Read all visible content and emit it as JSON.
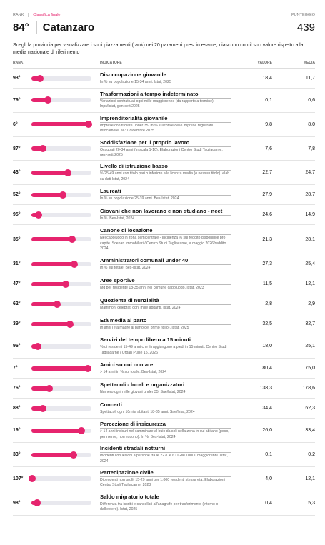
{
  "header": {
    "rank_label": "RANK",
    "section": "Classifica finale",
    "score_label": "PUNTEGGIO",
    "rank": "84°",
    "province": "Catanzaro",
    "score": "439"
  },
  "description": "Scegli la provincia per visualizzare i suoi piazzamenti (rank) nei 20 parametri presi in esame, ciascuno con il suo valore rispetto alla media nazionale di riferimento",
  "table": {
    "columns": [
      "RANK",
      "INDICATORE",
      "VALORE",
      "MEDIA"
    ],
    "bar_color": "#e6246e",
    "rows": [
      {
        "rank": {
          "value": 93,
          "label": "93°"
        },
        "title": "Disoccupazione giovanile",
        "note": "In % su popolazione 15-34 anni. Istat, 2025",
        "value": "18,4",
        "media": "11,7"
      },
      {
        "rank": {
          "value": 79,
          "label": "79°"
        },
        "title": "Trasformazioni a tempo indeterminato",
        "note": "Variazioni contrattuali ogni mille maggiorenne (da rapporto a termine). Inps/Istat, gen-sett 2025",
        "value": "0,1",
        "media": "0,6"
      },
      {
        "rank": {
          "value": 6,
          "label": "6°"
        },
        "title": "Imprenditorialità giovanile",
        "note": "Imprese con titolare under 35. In % sul totale delle imprese registrate. Infocamere, al 31 dicembre 2025",
        "value": "9,8",
        "media": "8,0"
      },
      {
        "rank": {
          "value": 87,
          "label": "87°"
        },
        "title": "Soddisfazione per il proprio lavoro",
        "note": "Occupati 20-34 anni (in scala 1-10). Elaborazioni Centro Studi Tagliacarne, gen-sett 2025",
        "value": "7,6",
        "media": "7,8"
      },
      {
        "rank": {
          "value": 43,
          "label": "43°"
        },
        "title": "Livello di istruzione basso",
        "note": "% 25-49 anni con titolo pari o inferiore alla licenza media (o nessun titolo). elab. su dati Istat, 2024",
        "value": "22,7",
        "media": "24,7"
      },
      {
        "rank": {
          "value": 52,
          "label": "52°"
        },
        "title": "Laureati",
        "note": "In % su popolazione 25-39 anni. Bes-Istat, 2024",
        "value": "27,9",
        "media": "28,7"
      },
      {
        "rank": {
          "value": 95,
          "label": "95°"
        },
        "title": "Giovani che non lavorano e non studiano - neet",
        "note": "In %. Bes-Istat, 2024",
        "value": "24,6",
        "media": "14,9"
      },
      {
        "rank": {
          "value": 35,
          "label": "35°"
        },
        "title": "Canone di locazione",
        "note": "Nel capoluogo in zona semicentrale - Incidenza % sul reddito disponibile pro capite. Scenari Immobiliari / Centro Studi Tagliacarne, a maggio 2026/reddito 2024",
        "value": "21,3",
        "media": "28,1"
      },
      {
        "rank": {
          "value": 31,
          "label": "31°"
        },
        "title": "Amministratori comunali under 40",
        "note": "In % sul totale. Bes-Istat, 2024",
        "value": "27,3",
        "media": "25,4"
      },
      {
        "rank": {
          "value": 47,
          "label": "47°"
        },
        "title": "Aree sportive",
        "note": "Mq per residente 18-35 anni nel comune capoluogo. Istat, 2023",
        "value": "11,5",
        "media": "12,1"
      },
      {
        "rank": {
          "value": 62,
          "label": "62°"
        },
        "title": "Quoziente di nunzialità",
        "note": "Matrimoni celebrati ogni mille abitanti. Istat, 2024",
        "value": "2,8",
        "media": "2,9"
      },
      {
        "rank": {
          "value": 39,
          "label": "39°"
        },
        "title": "Età media al parto",
        "note": "In anni (età madre al parto del primo figlio). Istat, 2025",
        "value": "32,5",
        "media": "32,7"
      },
      {
        "rank": {
          "value": 96,
          "label": "96°"
        },
        "title": "Servizi del tempo libero a 15 minuti",
        "note": "% di residenti 15-49 anni che li raggiungono a piedi in 15 minuti. Centro Studi Tagliacarne / Urban Pulse 15, 2026",
        "value": "18,0",
        "media": "25,1"
      },
      {
        "rank": {
          "value": 7,
          "label": "7°"
        },
        "title": "Amici su cui contare",
        "note": "> 14 anni in % sul totale. Bes-Istat, 2024",
        "value": "80,4",
        "media": "75,0"
      },
      {
        "rank": {
          "value": 76,
          "label": "76°"
        },
        "title": "Spettacoli - locali e organizzatori",
        "note": "Numero ogni mille giovani under 35. Sae/Istat, 2024",
        "value": "138,3",
        "media": "178,6"
      },
      {
        "rank": {
          "value": 88,
          "label": "88°"
        },
        "title": "Concerti",
        "note": "Spettacoli ogni 10mila abitanti 18-35 anni. Sae/Istat, 2024",
        "value": "34,4",
        "media": "62,3"
      },
      {
        "rank": {
          "value": 19,
          "label": "19°"
        },
        "title": "Percezione di insicurezza",
        "note": "> 14 anni insicuri nel camminare al buio da soli nella zona in cui abitano (poco, per niente, non escono). In %. Bes-Istat, 2024",
        "value": "26,0",
        "media": "33,4"
      },
      {
        "rank": {
          "value": 33,
          "label": "33°"
        },
        "title": "Incidenti stradali notturni",
        "note": "Incidenti con lesioni a persone tra le 22 e le 6 OGNI 10000 maggiorenni. Istat, 2024",
        "value": "0,1",
        "media": "0,2"
      },
      {
        "rank": {
          "value": 107,
          "label": "107°"
        },
        "title": "Partecipazione civile",
        "note": "Dipendenti non profit 15-29 anni per 1.000 residenti stessa età. Elaborazioni Centro Studi Tagliacarne, 2023",
        "value": "4,0",
        "media": "12,1"
      },
      {
        "rank": {
          "value": 98,
          "label": "98°"
        },
        "title": "Saldo migratorio totale",
        "note": "Differenza tra iscritti e cancellati all'anagrafe per trasferimento (interno o dall'estero). Istat, 2025",
        "value": "0,4",
        "media": "5,3"
      }
    ]
  }
}
